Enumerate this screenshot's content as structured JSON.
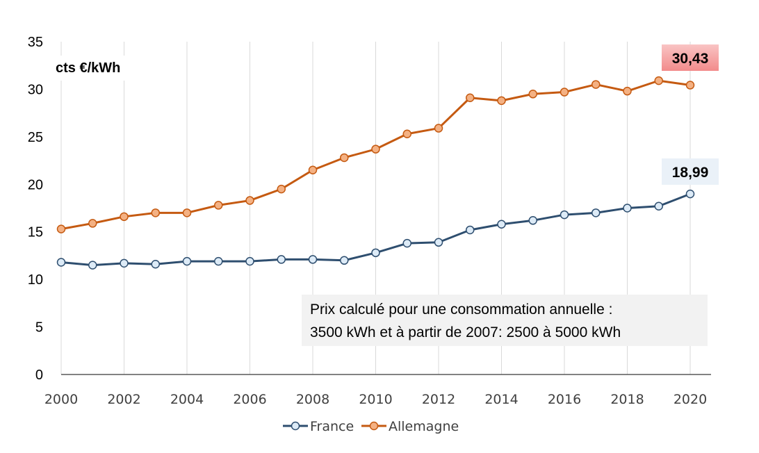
{
  "chart_data": {
    "type": "line",
    "x": [
      2000,
      2001,
      2002,
      2003,
      2004,
      2005,
      2006,
      2007,
      2008,
      2009,
      2010,
      2011,
      2012,
      2013,
      2014,
      2015,
      2016,
      2017,
      2018,
      2019,
      2020
    ],
    "x_tick_labels": [
      "2000",
      "2002",
      "2004",
      "2006",
      "2008",
      "2010",
      "2012",
      "2014",
      "2016",
      "2018",
      "2020"
    ],
    "y_tick_labels": [
      "0",
      "5",
      "10",
      "15",
      "20",
      "25",
      "30",
      "35"
    ],
    "ylim": [
      0,
      35
    ],
    "ylabel": "cts €/kWh",
    "grid": "vertical",
    "legend": "bottom",
    "series": [
      {
        "name": "France",
        "color": "#2E4E6F",
        "marker_fill": "#DDEBF7",
        "values": [
          11.8,
          11.5,
          11.7,
          11.6,
          11.9,
          11.9,
          11.9,
          12.1,
          12.1,
          12.0,
          12.8,
          13.8,
          13.9,
          15.2,
          15.8,
          16.2,
          16.8,
          17.0,
          17.5,
          17.7,
          18.99
        ]
      },
      {
        "name": "Allemagne",
        "color": "#C55A11",
        "marker_fill": "#F4B183",
        "values": [
          15.3,
          15.9,
          16.6,
          17.0,
          17.0,
          17.8,
          18.3,
          19.5,
          21.5,
          22.8,
          23.7,
          25.3,
          25.9,
          29.1,
          28.8,
          29.5,
          29.7,
          30.5,
          29.8,
          30.9,
          30.43
        ]
      }
    ],
    "annotations": {
      "allemagne_last": {
        "text": "30,43",
        "bg": "#F28B8B"
      },
      "france_last": {
        "text": "18,99",
        "bg": "#EAF1F8"
      },
      "note_lines": [
        "Prix calculé pour une consommation annuelle :",
        "3500 kWh et à partir de 2007: 2500 à 5000 kWh"
      ],
      "note_bg": "#F2F2F2"
    }
  }
}
